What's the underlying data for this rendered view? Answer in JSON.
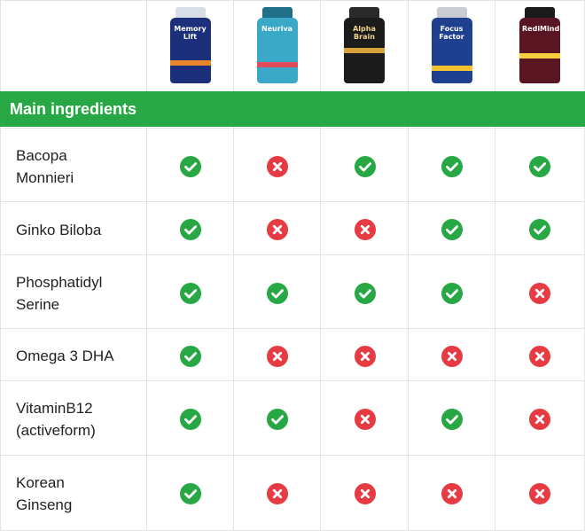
{
  "products": [
    {
      "name": "Memory Lift",
      "icon": "memory-lift-bottle"
    },
    {
      "name": "Neuriva",
      "icon": "neuriva-bottle"
    },
    {
      "name": "Alpha Brain",
      "icon": "alpha-brain-bottle"
    },
    {
      "name": "Focus Factor",
      "icon": "focus-factor-bottle"
    },
    {
      "name": "RediMind",
      "icon": "redimind-bottle"
    }
  ],
  "section_title": "Main ingredients",
  "colors": {
    "accent": "#27a844",
    "yes": "#27a844",
    "no": "#e63b43"
  },
  "rows": [
    {
      "line1": "Bacopa",
      "line2": "Monnieri",
      "marks": [
        true,
        false,
        true,
        true,
        true
      ]
    },
    {
      "line1": "Ginko Biloba",
      "line2": "",
      "marks": [
        true,
        false,
        false,
        true,
        true
      ]
    },
    {
      "line1": "Phosphatidyl",
      "line2": "Serine",
      "marks": [
        true,
        true,
        true,
        true,
        false
      ]
    },
    {
      "line1": "Omega 3 DHA",
      "line2": "",
      "marks": [
        true,
        false,
        false,
        false,
        false
      ]
    },
    {
      "line1": "VitaminB12",
      "line2": "(activeform)",
      "marks": [
        true,
        true,
        false,
        true,
        false
      ]
    },
    {
      "line1": "Korean",
      "line2": "Ginseng",
      "marks": [
        true,
        false,
        false,
        false,
        false
      ]
    }
  ]
}
